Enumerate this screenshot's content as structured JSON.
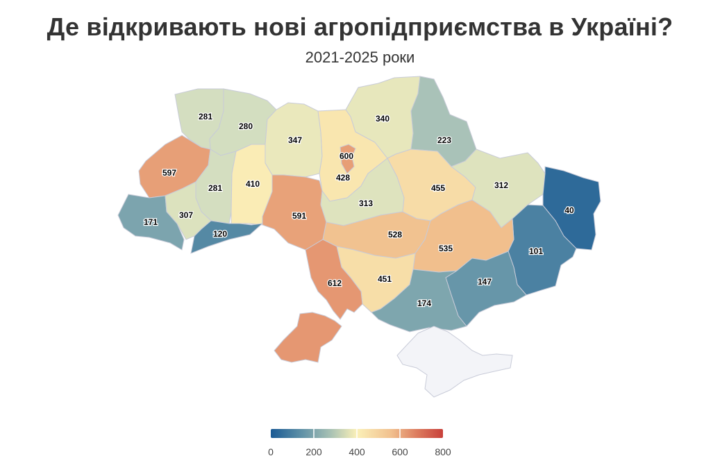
{
  "title": "Де відкривають нові агропідприємства в Україні?",
  "subtitle": "2021-2025 роки",
  "map_data": {
    "type": "choropleth",
    "colors": {
      "scale": [
        "#1a5a94",
        "#5b8ea6",
        "#cfdcc1",
        "#fbf0b8",
        "#f1c08e",
        "#dc7b5e",
        "#c8403a"
      ],
      "no_data": "#f3f4f8",
      "border": "#c8cbd8"
    },
    "scale_domain": [
      0,
      800
    ],
    "regions": [
      {
        "id": "volyn",
        "value": 281
      },
      {
        "id": "rivne",
        "value": 280
      },
      {
        "id": "zhytomyr",
        "value": 347
      },
      {
        "id": "kyiv-oblast",
        "value": 428
      },
      {
        "id": "kyiv-city",
        "value": 600
      },
      {
        "id": "chernihiv",
        "value": 340
      },
      {
        "id": "sumy",
        "value": 223
      },
      {
        "id": "lviv",
        "value": 597
      },
      {
        "id": "ternopil",
        "value": 281
      },
      {
        "id": "khmelnytskyi",
        "value": 410
      },
      {
        "id": "zakarpattia",
        "value": 171
      },
      {
        "id": "ivano-frankivsk",
        "value": 307
      },
      {
        "id": "chernivtsi",
        "value": 120
      },
      {
        "id": "vinnytsia",
        "value": 591
      },
      {
        "id": "cherkasy",
        "value": 313
      },
      {
        "id": "poltava",
        "value": 455
      },
      {
        "id": "kharkiv",
        "value": 312
      },
      {
        "id": "luhansk",
        "value": 40
      },
      {
        "id": "donetsk",
        "value": 101
      },
      {
        "id": "kirovohrad",
        "value": 528
      },
      {
        "id": "dnipropetrovsk",
        "value": 535
      },
      {
        "id": "zaporizhzhia",
        "value": 147
      },
      {
        "id": "mykolaiv",
        "value": 451
      },
      {
        "id": "kherson",
        "value": 174
      },
      {
        "id": "odesa-north",
        "value": 612
      },
      {
        "id": "odesa-south",
        "value": 612
      },
      {
        "id": "crimea",
        "value": null
      }
    ]
  },
  "legend": {
    "ticks": [
      "0",
      "200",
      "400",
      "600",
      "800"
    ]
  }
}
